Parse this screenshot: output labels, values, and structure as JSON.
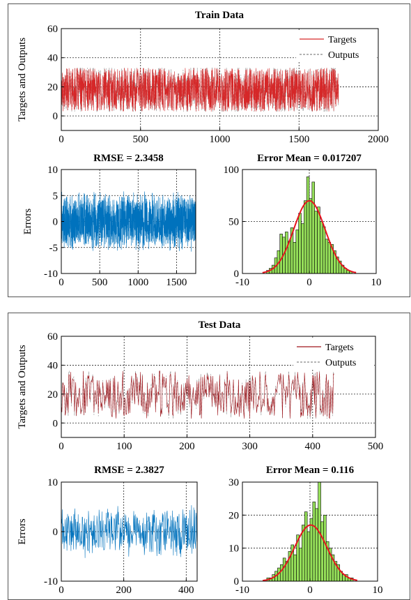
{
  "panels": [
    {
      "title": "Train Data"
    },
    {
      "title": "Test Data"
    }
  ],
  "chart_data": [
    {
      "type": "line",
      "title": "Train Data",
      "xlabel": "",
      "ylabel": "Targets and Outputs",
      "xlim": [
        0,
        2000
      ],
      "ylim": [
        -10,
        60
      ],
      "xticks": [
        0,
        500,
        1000,
        1500,
        2000
      ],
      "yticks": [
        0,
        20,
        40,
        60
      ],
      "grid": true,
      "legend": "top-right",
      "n": 1750,
      "range": [
        3,
        33
      ],
      "series": [
        {
          "name": "Targets",
          "color": "#d62728",
          "style": "solid"
        },
        {
          "name": "Outputs",
          "color": "#888888",
          "style": "dashed"
        }
      ]
    },
    {
      "type": "line",
      "title": "RMSE = 2.3458",
      "xlabel": "",
      "ylabel": "Errors",
      "xlim": [
        0,
        1750
      ],
      "ylim": [
        -10,
        10
      ],
      "xticks": [
        0,
        500,
        1000,
        1500
      ],
      "yticks": [
        -10,
        -5,
        0,
        5,
        10
      ],
      "grid": true,
      "n": 1750,
      "amplitude": 6,
      "series": [
        {
          "color": "#0072bd"
        }
      ]
    },
    {
      "type": "bar",
      "title": "Error Mean = 0.017207",
      "xlim": [
        -10,
        10
      ],
      "ylim": [
        0,
        100
      ],
      "xticks": [
        -10,
        0,
        10
      ],
      "yticks": [
        0,
        50,
        100
      ],
      "grid": true,
      "bin_centers": [
        -6.2,
        -5.8,
        -5.4,
        -5.0,
        -4.6,
        -4.2,
        -3.8,
        -3.4,
        -3.0,
        -2.6,
        -2.2,
        -1.8,
        -1.4,
        -1.0,
        -0.6,
        -0.2,
        0.2,
        0.6,
        1.0,
        1.4,
        1.8,
        2.2,
        2.6,
        3.0,
        3.4,
        3.8,
        4.2,
        4.6,
        5.0,
        5.4,
        5.8,
        6.2
      ],
      "counts": [
        3,
        5,
        8,
        15,
        22,
        38,
        35,
        40,
        31,
        44,
        30,
        42,
        58,
        48,
        70,
        93,
        72,
        88,
        60,
        64,
        50,
        45,
        33,
        30,
        28,
        22,
        16,
        12,
        8,
        5,
        3,
        2
      ],
      "fit": {
        "mean": 0.017,
        "std": 2.35,
        "peak": 70,
        "color": "#e8141e"
      },
      "bar_color": "#96e05a"
    },
    {
      "type": "line",
      "title": "Test Data",
      "xlabel": "",
      "ylabel": "Targets and Outputs",
      "xlim": [
        0,
        500
      ],
      "ylim": [
        -10,
        60
      ],
      "xticks": [
        0,
        100,
        200,
        300,
        400,
        500
      ],
      "yticks": [
        0,
        20,
        40,
        60
      ],
      "grid": true,
      "legend": "top-right",
      "n": 435,
      "range": [
        3,
        36
      ],
      "series": [
        {
          "name": "Targets",
          "color": "#a0161c",
          "style": "solid"
        },
        {
          "name": "Outputs",
          "color": "#888888",
          "style": "dashed"
        }
      ]
    },
    {
      "type": "line",
      "title": "RMSE = 2.3827",
      "xlabel": "",
      "ylabel": "Errors",
      "xlim": [
        0,
        435
      ],
      "ylim": [
        -10,
        10
      ],
      "xticks": [
        0,
        200,
        400
      ],
      "yticks": [
        -10,
        0,
        10
      ],
      "grid": true,
      "n": 435,
      "amplitude": 5.5,
      "series": [
        {
          "color": "#0072bd"
        }
      ]
    },
    {
      "type": "bar",
      "title": "Error Mean = 0.116",
      "xlim": [
        -10,
        10
      ],
      "ylim": [
        0,
        30
      ],
      "xticks": [
        -10,
        0,
        10
      ],
      "yticks": [
        0,
        10,
        20,
        30
      ],
      "grid": true,
      "bin_centers": [
        -6.2,
        -5.8,
        -5.4,
        -5.0,
        -4.6,
        -4.2,
        -3.8,
        -3.4,
        -3.0,
        -2.6,
        -2.2,
        -1.8,
        -1.4,
        -1.0,
        -0.6,
        -0.2,
        0.2,
        0.6,
        1.0,
        1.4,
        1.8,
        2.2,
        2.6,
        3.0,
        3.4,
        3.8,
        4.2,
        4.6,
        5.0,
        5.4,
        5.8,
        6.2
      ],
      "counts": [
        1,
        1,
        2,
        3,
        4,
        5,
        7,
        6,
        9,
        11,
        8,
        14,
        10,
        17,
        21,
        15,
        19,
        24,
        22,
        30,
        18,
        20,
        12,
        10,
        8,
        6,
        5,
        3,
        2,
        2,
        1,
        1
      ],
      "fit": {
        "mean": 0.116,
        "std": 2.38,
        "peak": 17,
        "color": "#e8141e"
      },
      "bar_color": "#96e05a"
    }
  ]
}
